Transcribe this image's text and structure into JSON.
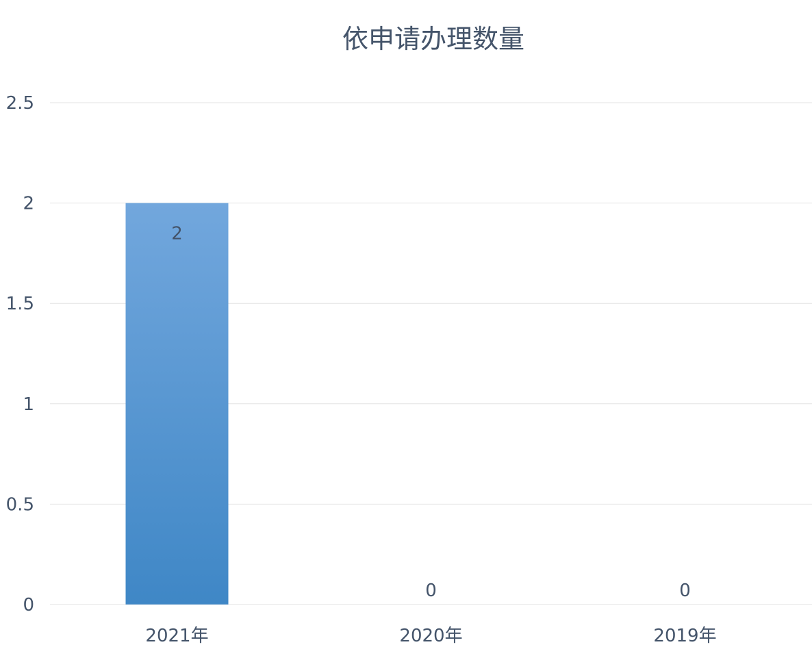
{
  "chart_data": {
    "type": "bar",
    "title": "依申请办理数量",
    "categories": [
      "2021年",
      "2020年",
      "2019年"
    ],
    "values": [
      2,
      0,
      0
    ],
    "data_labels": [
      "2",
      "0",
      "0"
    ],
    "ylim": [
      0,
      2.5
    ],
    "yticks": [
      "0",
      "0.5",
      "1",
      "1.5",
      "2",
      "2.5"
    ],
    "grid": true,
    "legend": "none",
    "colors": {
      "bar_top": "#72a7dd",
      "bar_bottom": "#3f87c6",
      "text": "#44546a",
      "grid": "#e3e3e3"
    }
  }
}
